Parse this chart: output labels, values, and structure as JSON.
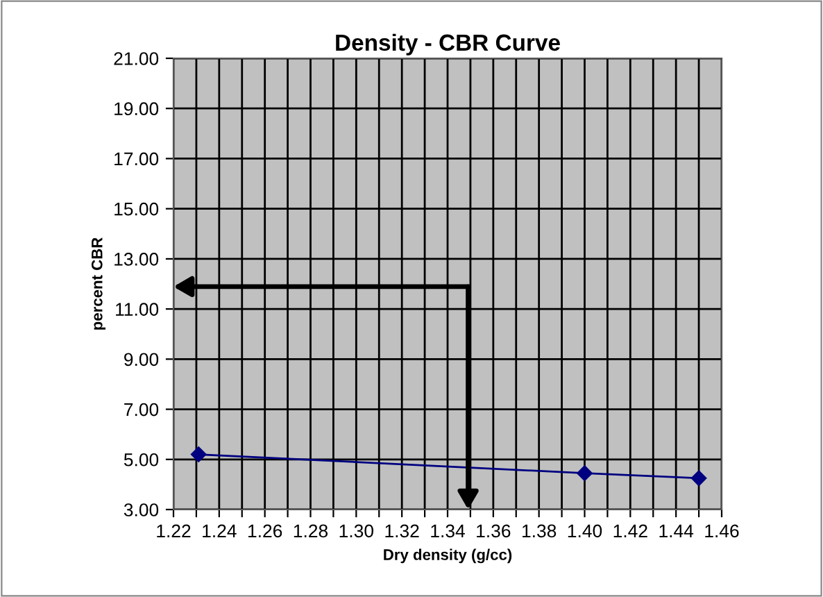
{
  "chart_data": {
    "type": "line",
    "title": "Density - CBR Curve",
    "xlabel": "Dry density (g/cc)",
    "ylabel": "percent CBR",
    "x": [
      1.231,
      1.4,
      1.45
    ],
    "series": [
      {
        "color": "#000080",
        "values": [
          5.2,
          4.45,
          4.25
        ]
      }
    ],
    "xlim": [
      1.22,
      1.46
    ],
    "xticks": [
      {
        "value": 1.22,
        "label": "1.22"
      },
      {
        "value": 1.23,
        "label": null
      },
      {
        "value": 1.24,
        "label": "1.24"
      },
      {
        "value": 1.25,
        "label": null
      },
      {
        "value": 1.26,
        "label": "1.26"
      },
      {
        "value": 1.27,
        "label": null
      },
      {
        "value": 1.28,
        "label": "1.28"
      },
      {
        "value": 1.29,
        "label": null
      },
      {
        "value": 1.3,
        "label": "1.30"
      },
      {
        "value": 1.31,
        "label": null
      },
      {
        "value": 1.32,
        "label": "1.32"
      },
      {
        "value": 1.33,
        "label": null
      },
      {
        "value": 1.34,
        "label": "1.34"
      },
      {
        "value": 1.35,
        "label": null
      },
      {
        "value": 1.36,
        "label": "1.36"
      },
      {
        "value": 1.37,
        "label": null
      },
      {
        "value": 1.38,
        "label": "1.38"
      },
      {
        "value": 1.39,
        "label": null
      },
      {
        "value": 1.4,
        "label": "1.40"
      },
      {
        "value": 1.41,
        "label": null
      },
      {
        "value": 1.42,
        "label": "1.42"
      },
      {
        "value": 1.43,
        "label": null
      },
      {
        "value": 1.44,
        "label": "1.44"
      },
      {
        "value": 1.45,
        "label": null
      },
      {
        "value": 1.46,
        "label": "1.46"
      }
    ],
    "ylim": [
      3,
      21
    ],
    "yticks": [
      {
        "value": 3,
        "label": "3.00"
      },
      {
        "value": 5,
        "label": "5.00"
      },
      {
        "value": 7,
        "label": "7.00"
      },
      {
        "value": 9,
        "label": "9.00"
      },
      {
        "value": 11,
        "label": "11.00"
      },
      {
        "value": 13,
        "label": "13.00"
      },
      {
        "value": 15,
        "label": "15.00"
      },
      {
        "value": 17,
        "label": "17.00"
      },
      {
        "value": 19,
        "label": "19.00"
      },
      {
        "value": 21,
        "label": "21.00"
      }
    ],
    "grid": true,
    "marker": "diamond",
    "line_style": "solid"
  }
}
